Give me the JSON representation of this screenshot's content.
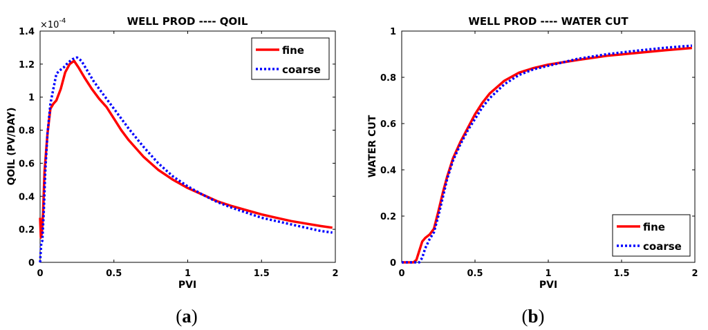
{
  "chart_data": [
    {
      "type": "line",
      "title": "WELL PROD ---- QOIL",
      "xlabel": "PVI",
      "ylabel": "QOIL (PV/DAY)",
      "xlim": [
        0,
        2
      ],
      "ylim": [
        0,
        1.4
      ],
      "xticks": [
        "0",
        "0.5",
        "1",
        "1.5",
        "2"
      ],
      "yticks": [
        "0",
        "0.2",
        "0.4",
        "0.6",
        "0.8",
        "1",
        "1.2",
        "1.4"
      ],
      "xtick_values": [
        0,
        0.5,
        1,
        1.5,
        2
      ],
      "ytick_values": [
        0,
        0.2,
        0.4,
        0.6,
        0.8,
        1,
        1.2,
        1.4
      ],
      "exponent_base": "×10",
      "exponent_power": "-4",
      "legend_position": "top-right",
      "panel_label": "a",
      "series": [
        {
          "name": "fine",
          "color": "#ff0000",
          "style": "solid",
          "x": [
            0,
            0.005,
            0.012,
            0.02,
            0.03,
            0.05,
            0.07,
            0.09,
            0.11,
            0.14,
            0.17,
            0.2,
            0.23,
            0.26,
            0.3,
            0.35,
            0.4,
            0.45,
            0.5,
            0.55,
            0.6,
            0.7,
            0.8,
            0.9,
            1.0,
            1.1,
            1.2,
            1.3,
            1.4,
            1.5,
            1.6,
            1.7,
            1.8,
            1.9,
            1.98
          ],
          "values": [
            0.27,
            0.15,
            0.18,
            0.3,
            0.55,
            0.78,
            0.93,
            0.96,
            0.98,
            1.05,
            1.15,
            1.2,
            1.22,
            1.18,
            1.12,
            1.05,
            0.99,
            0.94,
            0.87,
            0.8,
            0.74,
            0.64,
            0.56,
            0.5,
            0.45,
            0.41,
            0.37,
            0.34,
            0.315,
            0.29,
            0.27,
            0.25,
            0.235,
            0.22,
            0.21
          ]
        },
        {
          "name": "coarse",
          "color": "#0000ff",
          "style": "dotted",
          "x": [
            0,
            0.008,
            0.015,
            0.025,
            0.035,
            0.05,
            0.07,
            0.09,
            0.11,
            0.13,
            0.16,
            0.19,
            0.22,
            0.25,
            0.28,
            0.32,
            0.36,
            0.4,
            0.45,
            0.5,
            0.6,
            0.7,
            0.8,
            0.9,
            1.0,
            1.1,
            1.2,
            1.3,
            1.4,
            1.5,
            1.6,
            1.7,
            1.8,
            1.9,
            1.98
          ],
          "values": [
            0.0,
            0.12,
            0.13,
            0.3,
            0.55,
            0.78,
            0.96,
            1.05,
            1.14,
            1.16,
            1.18,
            1.21,
            1.23,
            1.24,
            1.22,
            1.16,
            1.1,
            1.05,
            0.99,
            0.93,
            0.81,
            0.7,
            0.6,
            0.52,
            0.46,
            0.41,
            0.365,
            0.33,
            0.3,
            0.27,
            0.25,
            0.23,
            0.21,
            0.19,
            0.18
          ]
        }
      ]
    },
    {
      "type": "line",
      "title": "WELL PROD ---- WATER CUT",
      "xlabel": "PVI",
      "ylabel": "WATER CUT",
      "xlim": [
        0,
        2
      ],
      "ylim": [
        0,
        1
      ],
      "xticks": [
        "0",
        "0.5",
        "1",
        "1.5",
        "2"
      ],
      "yticks": [
        "0",
        "0.2",
        "0.4",
        "0.6",
        "0.8",
        "1"
      ],
      "xtick_values": [
        0,
        0.5,
        1,
        1.5,
        2
      ],
      "ytick_values": [
        0,
        0.2,
        0.4,
        0.6,
        0.8,
        1
      ],
      "legend_position": "bottom-right",
      "panel_label": "b",
      "series": [
        {
          "name": "fine",
          "color": "#ff0000",
          "style": "solid",
          "x": [
            0,
            0.08,
            0.1,
            0.12,
            0.14,
            0.16,
            0.19,
            0.22,
            0.25,
            0.28,
            0.31,
            0.35,
            0.4,
            0.45,
            0.5,
            0.55,
            0.6,
            0.7,
            0.8,
            0.9,
            1.0,
            1.2,
            1.4,
            1.6,
            1.8,
            1.98
          ],
          "values": [
            0,
            0,
            0.01,
            0.05,
            0.09,
            0.105,
            0.12,
            0.145,
            0.22,
            0.3,
            0.37,
            0.45,
            0.52,
            0.58,
            0.64,
            0.69,
            0.73,
            0.785,
            0.82,
            0.84,
            0.855,
            0.875,
            0.893,
            0.905,
            0.917,
            0.927
          ]
        },
        {
          "name": "coarse",
          "color": "#0000ff",
          "style": "dotted",
          "x": [
            0,
            0.08,
            0.1,
            0.12,
            0.14,
            0.16,
            0.19,
            0.22,
            0.25,
            0.28,
            0.31,
            0.35,
            0.4,
            0.45,
            0.5,
            0.55,
            0.6,
            0.7,
            0.8,
            0.9,
            1.0,
            1.2,
            1.4,
            1.6,
            1.8,
            1.98
          ],
          "values": [
            0,
            0,
            0,
            0,
            0.02,
            0.06,
            0.1,
            0.13,
            0.2,
            0.28,
            0.36,
            0.44,
            0.51,
            0.57,
            0.62,
            0.67,
            0.71,
            0.77,
            0.81,
            0.835,
            0.85,
            0.88,
            0.9,
            0.915,
            0.928,
            0.937
          ]
        }
      ]
    }
  ]
}
